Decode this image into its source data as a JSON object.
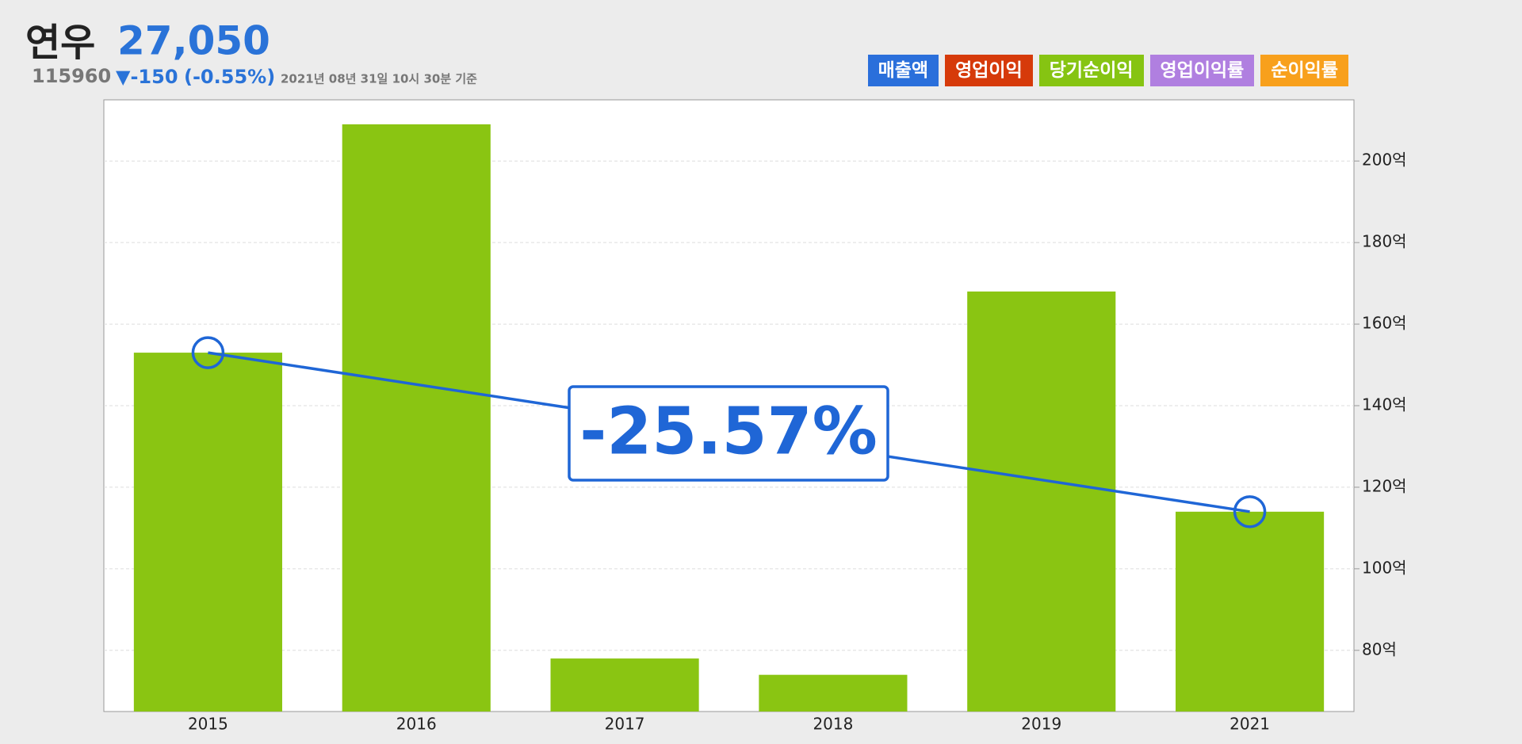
{
  "header": {
    "name": "연우",
    "price": "27,050",
    "code": "115960",
    "change": "▼-150",
    "change_rate": "(-0.55%)",
    "timestamp": "2021년 08년 31일 10시 30분 기준",
    "buttons": [
      {
        "label": "매출액",
        "color": "#2a6fdb"
      },
      {
        "label": "영업이익",
        "color": "#d63a0a"
      },
      {
        "label": "당기순이익",
        "color": "#86c412"
      },
      {
        "label": "영업이익률",
        "color": "#b07fe0"
      },
      {
        "label": "순이익률",
        "color": "#f8a01c"
      }
    ]
  },
  "chart_data": {
    "type": "bar",
    "categories": [
      "2015",
      "2016",
      "2017",
      "2018",
      "2019",
      "2021"
    ],
    "series": [
      {
        "color": "#8ac512",
        "values": [
          153,
          209,
          78,
          74,
          168,
          114
        ]
      }
    ],
    "ylim": [
      65,
      215
    ],
    "yticks": [
      {
        "value": 80,
        "label": "80억"
      },
      {
        "value": 100,
        "label": "100억"
      },
      {
        "value": 120,
        "label": "120억"
      },
      {
        "value": 140,
        "label": "140억"
      },
      {
        "value": 160,
        "label": "160억"
      },
      {
        "value": 180,
        "label": "180억"
      },
      {
        "value": 200,
        "label": "200억"
      }
    ],
    "grid": true,
    "trend": {
      "color": "#1f66d6",
      "annotation": "-25.57%"
    }
  }
}
